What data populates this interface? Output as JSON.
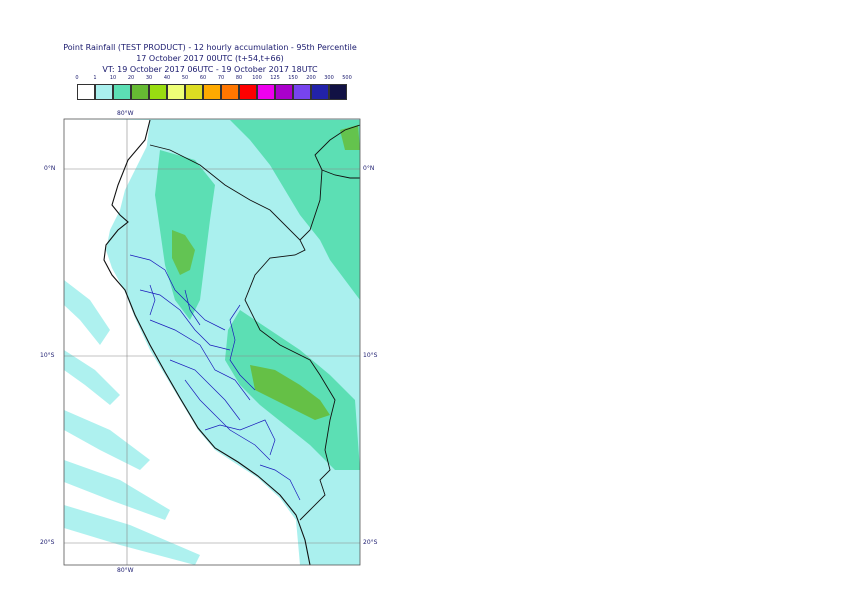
{
  "header": {
    "line1": "Point Rainfall (TEST PRODUCT) - 12 hourly accumulation - 95th Percentile",
    "line2": "17 October 2017 00UTC (t+54,t+66)",
    "line3": "VT: 19 October 2017 06UTC - 19 October 2017 18UTC"
  },
  "legend": {
    "thresholds": [
      "0",
      "1",
      "10",
      "20",
      "30",
      "40",
      "50",
      "60",
      "70",
      "80",
      "100",
      "125",
      "150",
      "200",
      "300",
      "500"
    ],
    "colors": [
      "#ffffff",
      "#aaf0ee",
      "#5cdfb4",
      "#66bb33",
      "#99dd11",
      "#eeff77",
      "#dddd22",
      "#ffaa00",
      "#ff7700",
      "#ff0000",
      "#ee00ee",
      "#aa00cc",
      "#7744ee",
      "#2222aa",
      "#111144"
    ]
  },
  "axes": {
    "top_lon": "80°W",
    "bottom_lon": "80°W",
    "lat_labels": [
      "0°N",
      "10°S",
      "20°S"
    ]
  }
}
